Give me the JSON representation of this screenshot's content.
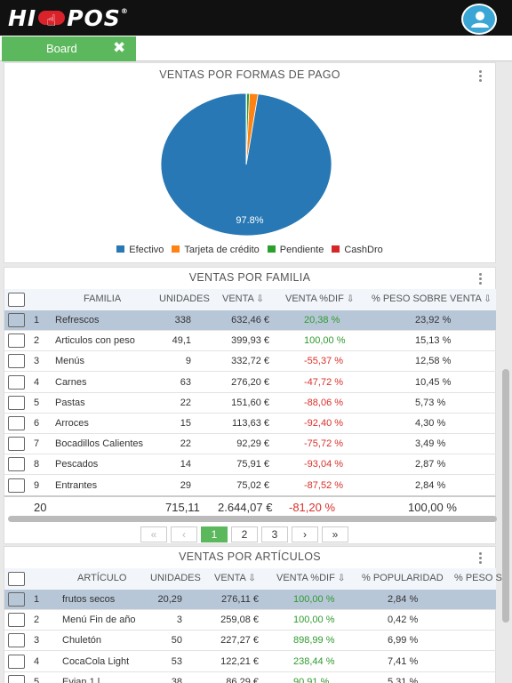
{
  "app": {
    "brand_left": "HI",
    "brand_right": "POS",
    "brand_mark": "®"
  },
  "tab": {
    "label": "Board",
    "close": "✖"
  },
  "payments": {
    "title": "VENTAS POR FORMAS DE PAGO",
    "chart_data": {
      "type": "pie",
      "categories": [
        "Efectivo",
        "Tarjeta de crédito",
        "Pendiente",
        "CashDro"
      ],
      "values": [
        97.8,
        1.6,
        0.5,
        0.1
      ],
      "colors": [
        "#2778b4",
        "#ff8313",
        "#2ca02c",
        "#d62728"
      ],
      "data_label": "97.8%"
    }
  },
  "familia": {
    "title": "VENTAS POR FAMILIA",
    "headers": {
      "familia": "FAMILIA",
      "unidades": "UNIDADES",
      "venta": "VENTA",
      "dif": "VENTA %DIF",
      "peso": "% PESO SOBRE VENTA"
    },
    "rows": [
      {
        "n": "1",
        "name": "Refrescos",
        "u": "338",
        "v": "632,46 €",
        "d": "20,38 %",
        "p": "23,92 %"
      },
      {
        "n": "2",
        "name": "Articulos con peso",
        "u": "49,1",
        "v": "399,93 €",
        "d": "100,00 %",
        "p": "15,13 %"
      },
      {
        "n": "3",
        "name": "Menús",
        "u": "9",
        "v": "332,72 €",
        "d": "-55,37 %",
        "p": "12,58 %"
      },
      {
        "n": "4",
        "name": "Carnes",
        "u": "63",
        "v": "276,20 €",
        "d": "-47,72 %",
        "p": "10,45 %"
      },
      {
        "n": "5",
        "name": "Pastas",
        "u": "22",
        "v": "151,60 €",
        "d": "-88,06 %",
        "p": "5,73 %"
      },
      {
        "n": "6",
        "name": "Arroces",
        "u": "15",
        "v": "113,63 €",
        "d": "-92,40 %",
        "p": "4,30 %"
      },
      {
        "n": "7",
        "name": "Bocadillos Calientes",
        "u": "22",
        "v": "92,29 €",
        "d": "-75,72 %",
        "p": "3,49 %"
      },
      {
        "n": "8",
        "name": "Pescados",
        "u": "14",
        "v": "75,91 €",
        "d": "-93,04 %",
        "p": "2,87 %"
      },
      {
        "n": "9",
        "name": "Entrantes",
        "u": "29",
        "v": "75,02 €",
        "d": "-87,52 %",
        "p": "2,84 %"
      }
    ],
    "totals": {
      "count": "20",
      "u": "715,11",
      "v": "2.644,07 €",
      "d": "-81,20 %",
      "p": "100,00 %"
    },
    "pager": {
      "first": "«",
      "prev": "‹",
      "pages": [
        "1",
        "2",
        "3"
      ],
      "next": "›",
      "last": "»"
    }
  },
  "articulos": {
    "title": "VENTAS POR ARTÍCULOS",
    "headers": {
      "articulo": "ARTÍCULO",
      "unidades": "UNIDADES",
      "venta": "VENTA",
      "dif": "VENTA %DIF",
      "pop": "% POPULARIDAD",
      "peso": "% PESO S"
    },
    "rows": [
      {
        "n": "1",
        "name": "frutos secos",
        "u": "20,29",
        "v": "276,11 €",
        "d": "100,00 %",
        "p": "2,84 %"
      },
      {
        "n": "2",
        "name": "Menú Fin de año",
        "u": "3",
        "v": "259,08 €",
        "d": "100,00 %",
        "p": "0,42 %"
      },
      {
        "n": "3",
        "name": "Chuletón",
        "u": "50",
        "v": "227,27 €",
        "d": "898,99 %",
        "p": "6,99 %"
      },
      {
        "n": "4",
        "name": "CocaCola Light",
        "u": "53",
        "v": "122,21 €",
        "d": "238,44 %",
        "p": "7,41 %"
      },
      {
        "n": "5",
        "name": "Evian 1 l",
        "u": "38",
        "v": "86,29 €",
        "d": "90,91 %",
        "p": "5,31 %"
      }
    ]
  }
}
